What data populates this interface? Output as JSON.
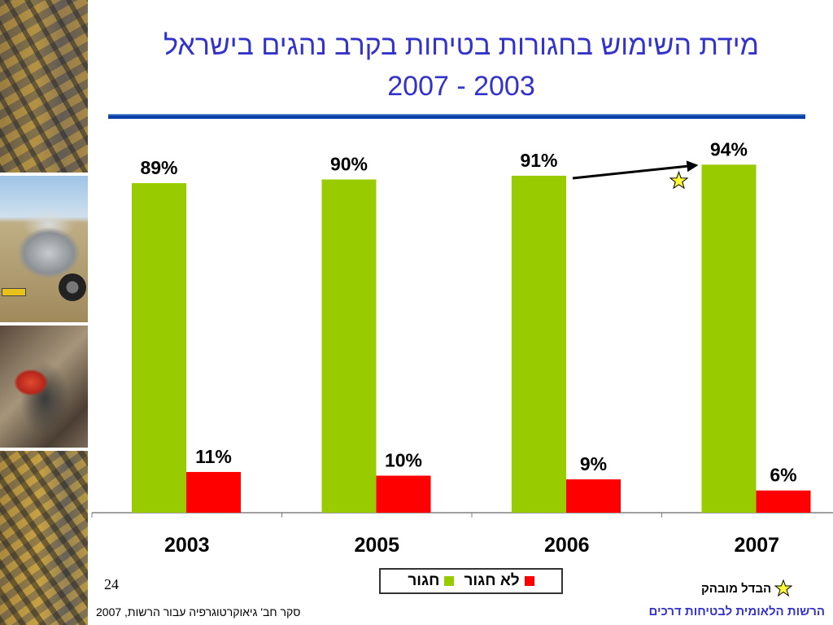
{
  "slide": {
    "title_line1": "מידת השימוש בחגורות בטיחות בקרב נהגים בישראל",
    "title_line2": "2007 - 2003",
    "page_number": "24",
    "significance_legend": "הבדל מובהק",
    "footer_source": "סקר חב' גיאוקרטוגרפיה עבור הרשות, 2007",
    "footer_org": "הרשות הלאומית לבטיחות דרכים"
  },
  "colors": {
    "title": "#3333cc",
    "belted": "#99cc00",
    "unbelted": "#ff0000",
    "star_fill": "#ffff33"
  },
  "chart_data": {
    "type": "bar",
    "categories": [
      "2003",
      "2005",
      "2006",
      "2007"
    ],
    "series": [
      {
        "name": "חגור",
        "values": [
          89,
          90,
          91,
          94
        ],
        "labels": [
          "89%",
          "90%",
          "91%",
          "94%"
        ],
        "color": "#99cc00"
      },
      {
        "name": "לא חגור",
        "values": [
          11,
          10,
          9,
          6
        ],
        "labels": [
          "11%",
          "10%",
          "9%",
          "6%"
        ],
        "color": "#ff0000"
      }
    ],
    "ylim": [
      0,
      100
    ],
    "grid": false,
    "legend_position": "bottom",
    "annotation": {
      "type": "arrow-with-star",
      "from_category": "2006",
      "to_category": "2007",
      "series": "חגור",
      "meaning": "הבדל מובהק"
    }
  }
}
